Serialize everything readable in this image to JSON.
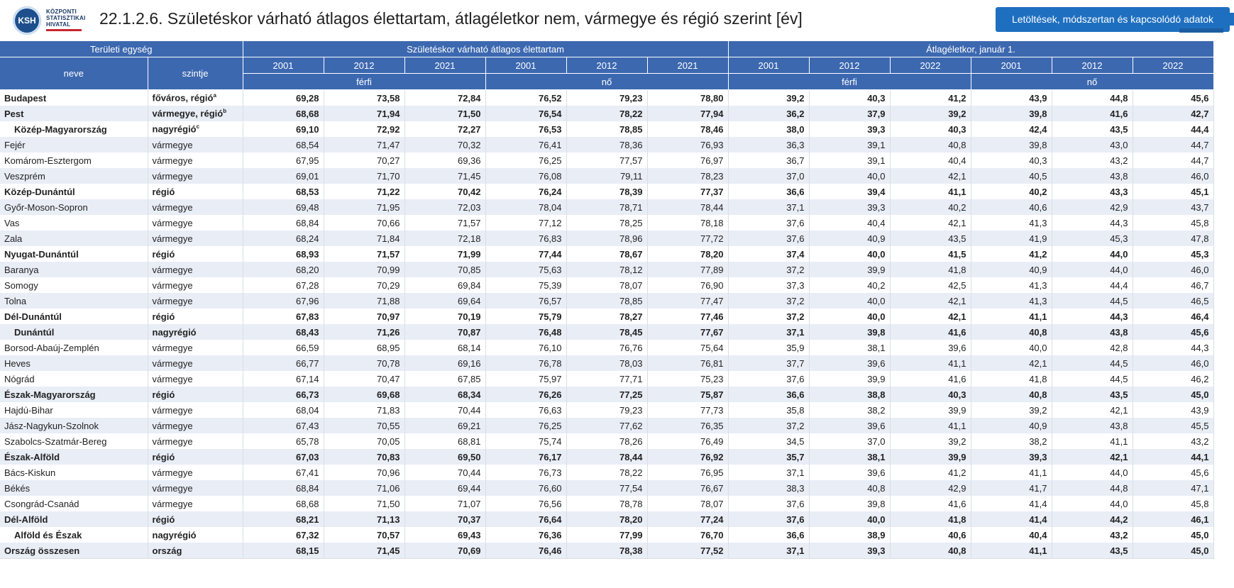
{
  "header": {
    "logo_mark": "KSH",
    "logo_lines": [
      "KÖZPONTI",
      "STATISZTIKAI",
      "HIVATAL"
    ],
    "title": "22.1.2.6. Születéskor várható átlagos élettartam, átlagéletkor nem, vármegye és régió szerint [év]",
    "download_button": "Letöltések, módszertan és kapcsolódó adatok"
  },
  "table": {
    "group_headers": {
      "territorial": "Területi egység",
      "life_expectancy": "Születéskor várható átlagos élettartam",
      "average_age": "Átlagéletkor, január 1."
    },
    "col_name": "neve",
    "col_level": "szintje",
    "years_le": [
      "2001",
      "2012",
      "2021",
      "2001",
      "2012",
      "2021"
    ],
    "years_age": [
      "2001",
      "2012",
      "2022",
      "2001",
      "2012",
      "2022"
    ],
    "sex_labels": [
      "férfi",
      "nő",
      "férfi",
      "nő"
    ],
    "rows": [
      {
        "name": "Budapest",
        "level": "főváros, régió",
        "sup": "a",
        "bold": true,
        "indent": false,
        "values": [
          "69,28",
          "73,58",
          "72,84",
          "76,52",
          "79,23",
          "78,80",
          "39,2",
          "40,3",
          "41,2",
          "43,9",
          "44,8",
          "45,6"
        ]
      },
      {
        "name": "Pest",
        "level": "vármegye, régió",
        "sup": "b",
        "bold": true,
        "indent": false,
        "values": [
          "68,68",
          "71,94",
          "71,50",
          "76,54",
          "78,22",
          "77,94",
          "36,2",
          "37,9",
          "39,2",
          "39,8",
          "41,6",
          "42,7"
        ]
      },
      {
        "name": "Közép-Magyarország",
        "level": "nagyrégió",
        "sup": "c",
        "bold": true,
        "indent": true,
        "values": [
          "69,10",
          "72,92",
          "72,27",
          "76,53",
          "78,85",
          "78,46",
          "38,0",
          "39,3",
          "40,3",
          "42,4",
          "43,5",
          "44,4"
        ]
      },
      {
        "name": "Fejér",
        "level": "vármegye",
        "sup": "",
        "bold": false,
        "indent": false,
        "values": [
          "68,54",
          "71,47",
          "70,32",
          "76,41",
          "78,36",
          "76,93",
          "36,3",
          "39,1",
          "40,8",
          "39,8",
          "43,0",
          "44,7"
        ]
      },
      {
        "name": "Komárom-Esztergom",
        "level": "vármegye",
        "sup": "",
        "bold": false,
        "indent": false,
        "values": [
          "67,95",
          "70,27",
          "69,36",
          "76,25",
          "77,57",
          "76,97",
          "36,7",
          "39,1",
          "40,4",
          "40,3",
          "43,2",
          "44,7"
        ]
      },
      {
        "name": "Veszprém",
        "level": "vármegye",
        "sup": "",
        "bold": false,
        "indent": false,
        "values": [
          "69,01",
          "71,70",
          "71,45",
          "76,08",
          "79,11",
          "78,23",
          "37,0",
          "40,0",
          "42,1",
          "40,5",
          "43,8",
          "46,0"
        ]
      },
      {
        "name": "Közép-Dunántúl",
        "level": "régió",
        "sup": "",
        "bold": true,
        "indent": false,
        "values": [
          "68,53",
          "71,22",
          "70,42",
          "76,24",
          "78,39",
          "77,37",
          "36,6",
          "39,4",
          "41,1",
          "40,2",
          "43,3",
          "45,1"
        ]
      },
      {
        "name": "Győr-Moson-Sopron",
        "level": "vármegye",
        "sup": "",
        "bold": false,
        "indent": false,
        "values": [
          "69,48",
          "71,95",
          "72,03",
          "78,04",
          "78,71",
          "78,44",
          "37,1",
          "39,3",
          "40,2",
          "40,6",
          "42,9",
          "43,7"
        ]
      },
      {
        "name": "Vas",
        "level": "vármegye",
        "sup": "",
        "bold": false,
        "indent": false,
        "values": [
          "68,84",
          "70,66",
          "71,57",
          "77,12",
          "78,25",
          "78,18",
          "37,6",
          "40,4",
          "42,1",
          "41,3",
          "44,3",
          "45,8"
        ]
      },
      {
        "name": "Zala",
        "level": "vármegye",
        "sup": "",
        "bold": false,
        "indent": false,
        "values": [
          "68,24",
          "71,84",
          "72,18",
          "76,83",
          "78,96",
          "77,72",
          "37,6",
          "40,9",
          "43,5",
          "41,9",
          "45,3",
          "47,8"
        ]
      },
      {
        "name": "Nyugat-Dunántúl",
        "level": "régió",
        "sup": "",
        "bold": true,
        "indent": false,
        "values": [
          "68,93",
          "71,57",
          "71,99",
          "77,44",
          "78,67",
          "78,20",
          "37,4",
          "40,0",
          "41,5",
          "41,2",
          "44,0",
          "45,3"
        ]
      },
      {
        "name": "Baranya",
        "level": "vármegye",
        "sup": "",
        "bold": false,
        "indent": false,
        "values": [
          "68,20",
          "70,99",
          "70,85",
          "75,63",
          "78,12",
          "77,89",
          "37,2",
          "39,9",
          "41,8",
          "40,9",
          "44,0",
          "46,0"
        ]
      },
      {
        "name": "Somogy",
        "level": "vármegye",
        "sup": "",
        "bold": false,
        "indent": false,
        "values": [
          "67,28",
          "70,29",
          "69,84",
          "75,39",
          "78,07",
          "76,90",
          "37,3",
          "40,2",
          "42,5",
          "41,3",
          "44,4",
          "46,7"
        ]
      },
      {
        "name": "Tolna",
        "level": "vármegye",
        "sup": "",
        "bold": false,
        "indent": false,
        "values": [
          "67,96",
          "71,88",
          "69,64",
          "76,57",
          "78,85",
          "77,47",
          "37,2",
          "40,0",
          "42,1",
          "41,3",
          "44,5",
          "46,5"
        ]
      },
      {
        "name": "Dél-Dunántúl",
        "level": "régió",
        "sup": "",
        "bold": true,
        "indent": false,
        "values": [
          "67,83",
          "70,97",
          "70,19",
          "75,79",
          "78,27",
          "77,46",
          "37,2",
          "40,0",
          "42,1",
          "41,1",
          "44,3",
          "46,4"
        ]
      },
      {
        "name": "Dunántúl",
        "level": "nagyrégió",
        "sup": "",
        "bold": true,
        "indent": true,
        "values": [
          "68,43",
          "71,26",
          "70,87",
          "76,48",
          "78,45",
          "77,67",
          "37,1",
          "39,8",
          "41,6",
          "40,8",
          "43,8",
          "45,6"
        ]
      },
      {
        "name": "Borsod-Abaúj-Zemplén",
        "level": "vármegye",
        "sup": "",
        "bold": false,
        "indent": false,
        "values": [
          "66,59",
          "68,95",
          "68,14",
          "76,10",
          "76,76",
          "75,64",
          "35,9",
          "38,1",
          "39,6",
          "40,0",
          "42,8",
          "44,3"
        ]
      },
      {
        "name": "Heves",
        "level": "vármegye",
        "sup": "",
        "bold": false,
        "indent": false,
        "values": [
          "66,77",
          "70,78",
          "69,16",
          "76,78",
          "78,03",
          "76,81",
          "37,7",
          "39,6",
          "41,1",
          "42,1",
          "44,5",
          "46,0"
        ]
      },
      {
        "name": "Nógrád",
        "level": "vármegye",
        "sup": "",
        "bold": false,
        "indent": false,
        "values": [
          "67,14",
          "70,47",
          "67,85",
          "75,97",
          "77,71",
          "75,23",
          "37,6",
          "39,9",
          "41,6",
          "41,8",
          "44,5",
          "46,2"
        ]
      },
      {
        "name": "Észak-Magyarország",
        "level": "régió",
        "sup": "",
        "bold": true,
        "indent": false,
        "values": [
          "66,73",
          "69,68",
          "68,34",
          "76,26",
          "77,25",
          "75,87",
          "36,6",
          "38,8",
          "40,3",
          "40,8",
          "43,5",
          "45,0"
        ]
      },
      {
        "name": "Hajdú-Bihar",
        "level": "vármegye",
        "sup": "",
        "bold": false,
        "indent": false,
        "values": [
          "68,04",
          "71,83",
          "70,44",
          "76,63",
          "79,23",
          "77,73",
          "35,8",
          "38,2",
          "39,9",
          "39,2",
          "42,1",
          "43,9"
        ]
      },
      {
        "name": "Jász-Nagykun-Szolnok",
        "level": "vármegye",
        "sup": "",
        "bold": false,
        "indent": false,
        "values": [
          "67,43",
          "70,55",
          "69,21",
          "76,25",
          "77,62",
          "76,35",
          "37,2",
          "39,6",
          "41,1",
          "40,9",
          "43,8",
          "45,5"
        ]
      },
      {
        "name": "Szabolcs-Szatmár-Bereg",
        "level": "vármegye",
        "sup": "",
        "bold": false,
        "indent": false,
        "values": [
          "65,78",
          "70,05",
          "68,81",
          "75,74",
          "78,26",
          "76,49",
          "34,5",
          "37,0",
          "39,2",
          "38,2",
          "41,1",
          "43,2"
        ]
      },
      {
        "name": "Észak-Alföld",
        "level": "régió",
        "sup": "",
        "bold": true,
        "indent": false,
        "values": [
          "67,03",
          "70,83",
          "69,50",
          "76,17",
          "78,44",
          "76,92",
          "35,7",
          "38,1",
          "39,9",
          "39,3",
          "42,1",
          "44,1"
        ]
      },
      {
        "name": "Bács-Kiskun",
        "level": "vármegye",
        "sup": "",
        "bold": false,
        "indent": false,
        "values": [
          "67,41",
          "70,96",
          "70,44",
          "76,73",
          "78,22",
          "76,95",
          "37,1",
          "39,6",
          "41,2",
          "41,1",
          "44,0",
          "45,6"
        ]
      },
      {
        "name": "Békés",
        "level": "vármegye",
        "sup": "",
        "bold": false,
        "indent": false,
        "values": [
          "68,84",
          "71,06",
          "69,44",
          "76,60",
          "77,54",
          "76,67",
          "38,3",
          "40,8",
          "42,9",
          "41,7",
          "44,8",
          "47,1"
        ]
      },
      {
        "name": "Csongrád-Csanád",
        "level": "vármegye",
        "sup": "",
        "bold": false,
        "indent": false,
        "values": [
          "68,68",
          "71,50",
          "71,07",
          "76,56",
          "78,78",
          "78,07",
          "37,6",
          "39,8",
          "41,6",
          "41,4",
          "44,0",
          "45,8"
        ]
      },
      {
        "name": "Dél-Alföld",
        "level": "régió",
        "sup": "",
        "bold": true,
        "indent": false,
        "values": [
          "68,21",
          "71,13",
          "70,37",
          "76,64",
          "78,20",
          "77,24",
          "37,6",
          "40,0",
          "41,8",
          "41,4",
          "44,2",
          "46,1"
        ]
      },
      {
        "name": "Alföld és Észak",
        "level": "nagyrégió",
        "sup": "",
        "bold": true,
        "indent": true,
        "values": [
          "67,32",
          "70,57",
          "69,43",
          "76,36",
          "77,99",
          "76,70",
          "36,6",
          "38,9",
          "40,6",
          "40,4",
          "43,2",
          "45,0"
        ]
      },
      {
        "name": "Ország összesen",
        "level": "ország",
        "sup": "",
        "bold": true,
        "indent": false,
        "values": [
          "68,15",
          "71,45",
          "70,69",
          "76,46",
          "78,38",
          "77,52",
          "37,1",
          "39,3",
          "40,8",
          "41,1",
          "43,5",
          "45,0"
        ]
      }
    ]
  }
}
